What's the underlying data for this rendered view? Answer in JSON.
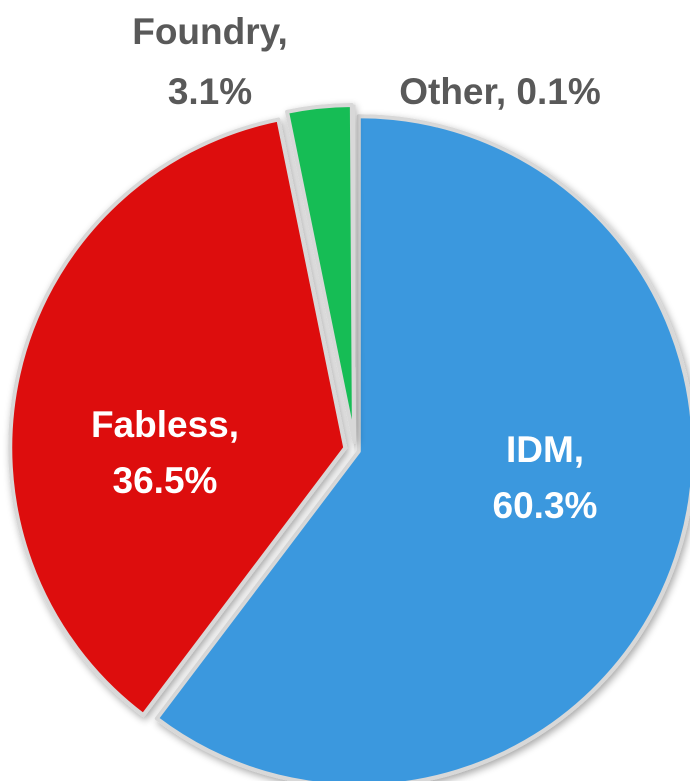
{
  "chart_data": {
    "type": "pie",
    "title": "",
    "start_angle_deg": 0,
    "direction": "clockwise",
    "legend": "none",
    "slices": [
      {
        "name": "IDM",
        "value": 60.3,
        "label_line1": "IDM,",
        "label_line2": "60.3%",
        "color": "#3A98DE",
        "label_color": "#FFFFFF"
      },
      {
        "name": "Fabless",
        "value": 36.5,
        "label_line1": "Fabless,",
        "label_line2": "36.5%",
        "color": "#DD0A0A",
        "label_color": "#FFFFFF"
      },
      {
        "name": "Foundry",
        "value": 3.1,
        "label_line1": "Foundry,",
        "label_line2": "3.1%",
        "color": "#17BD55",
        "label_color": "#595959"
      },
      {
        "name": "Other",
        "value": 0.1,
        "label_line1": "Other, 0.1%",
        "label_line2": "",
        "color": "#7E57C2",
        "label_color": "#595959"
      }
    ]
  }
}
